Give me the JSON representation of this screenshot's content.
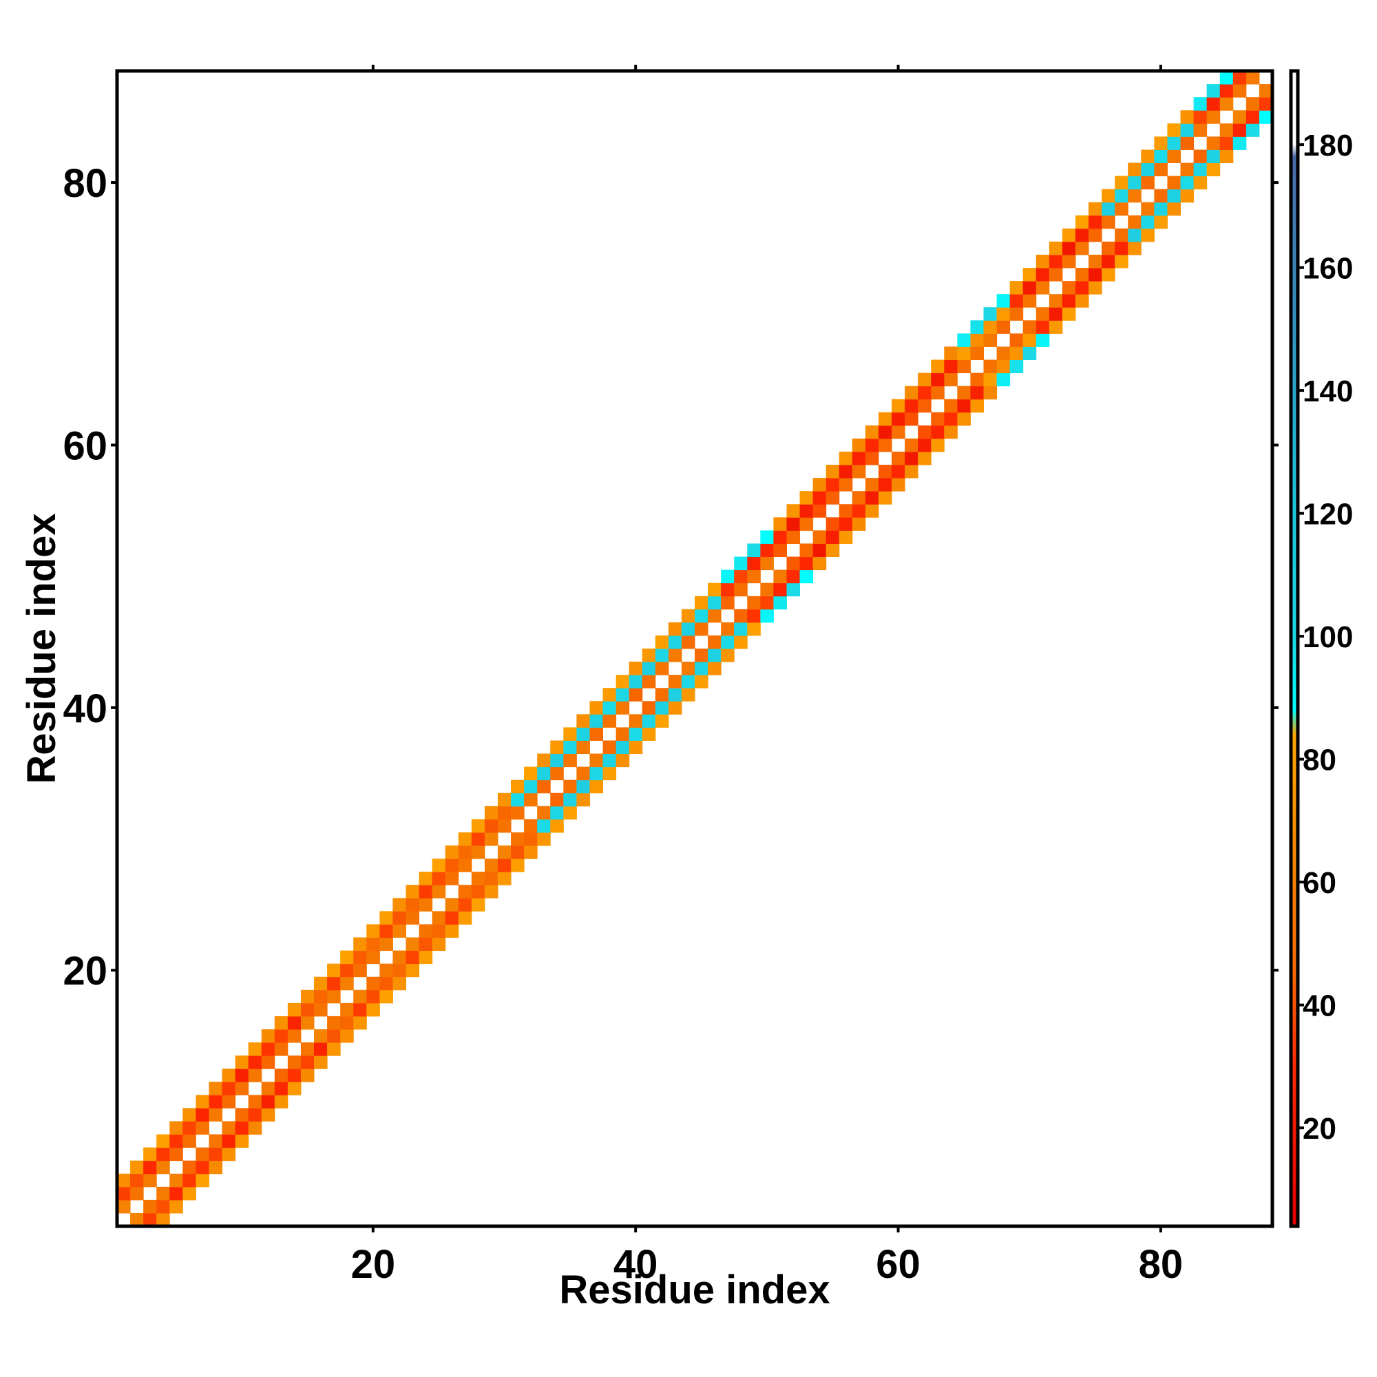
{
  "chart_data": {
    "type": "heatmap",
    "title": "",
    "xlabel": "Residue index",
    "ylabel": "Residue index",
    "xlim": [
      0.5,
      88.5
    ],
    "ylim": [
      0.5,
      88.5
    ],
    "x_ticks": [
      20,
      40,
      60,
      80
    ],
    "y_ticks": [
      20,
      40,
      60,
      80
    ],
    "grid": false,
    "colorbar": {
      "range": [
        4,
        192
      ],
      "ticks": [
        20,
        40,
        60,
        80,
        100,
        120,
        140,
        160,
        180
      ],
      "stops": [
        {
          "v": 4,
          "c": "#e00000"
        },
        {
          "v": 30,
          "c": "#ff2a00"
        },
        {
          "v": 45,
          "c": "#f86a00"
        },
        {
          "v": 60,
          "c": "#f58000"
        },
        {
          "v": 84,
          "c": "#ffa600"
        },
        {
          "v": 88,
          "c": "#00ffff"
        },
        {
          "v": 100,
          "c": "#1ed8e6"
        },
        {
          "v": 120,
          "c": "#1fc8dd"
        },
        {
          "v": 140,
          "c": "#2aa6cc"
        },
        {
          "v": 160,
          "c": "#3b86b8"
        },
        {
          "v": 178,
          "c": "#4a6aa8"
        },
        {
          "v": 180,
          "c": "#ffffff"
        },
        {
          "v": 192,
          "c": "#ffffff"
        }
      ]
    },
    "description_of_values": "Symmetric band along the diagonal with offsets |i-j| from 1 to 3; values are distances/angles encoded by color.",
    "band": {
      "offsets": [
        1,
        2,
        3
      ],
      "segments": [
        {
          "from": 1,
          "to": 4,
          "values": {
            "1": 55,
            "2": 35,
            "3": 75
          }
        },
        {
          "from": 5,
          "to": 14,
          "values": {
            "1": 50,
            "2": 30,
            "3": 70
          }
        },
        {
          "from": 15,
          "to": 30,
          "values": {
            "1": 55,
            "2": 40,
            "3": 75
          }
        },
        {
          "from": 31,
          "to": 46,
          "values": {
            "1": 50,
            "2": 105,
            "3": 75
          }
        },
        {
          "from": 47,
          "to": 50,
          "values": {
            "1": 50,
            "2": 30,
            "3": 95
          }
        },
        {
          "from": 51,
          "to": 64,
          "values": {
            "1": 45,
            "2": 25,
            "3": 70
          }
        },
        {
          "from": 65,
          "to": 68,
          "values": {
            "1": 50,
            "2": 75,
            "3": 95
          }
        },
        {
          "from": 69,
          "to": 75,
          "values": {
            "1": 50,
            "2": 25,
            "3": 75
          }
        },
        {
          "from": 76,
          "to": 82,
          "values": {
            "1": 50,
            "2": 105,
            "3": 75
          }
        },
        {
          "from": 83,
          "to": 88,
          "values": {
            "1": 55,
            "2": 30,
            "3": 95
          }
        }
      ]
    }
  }
}
